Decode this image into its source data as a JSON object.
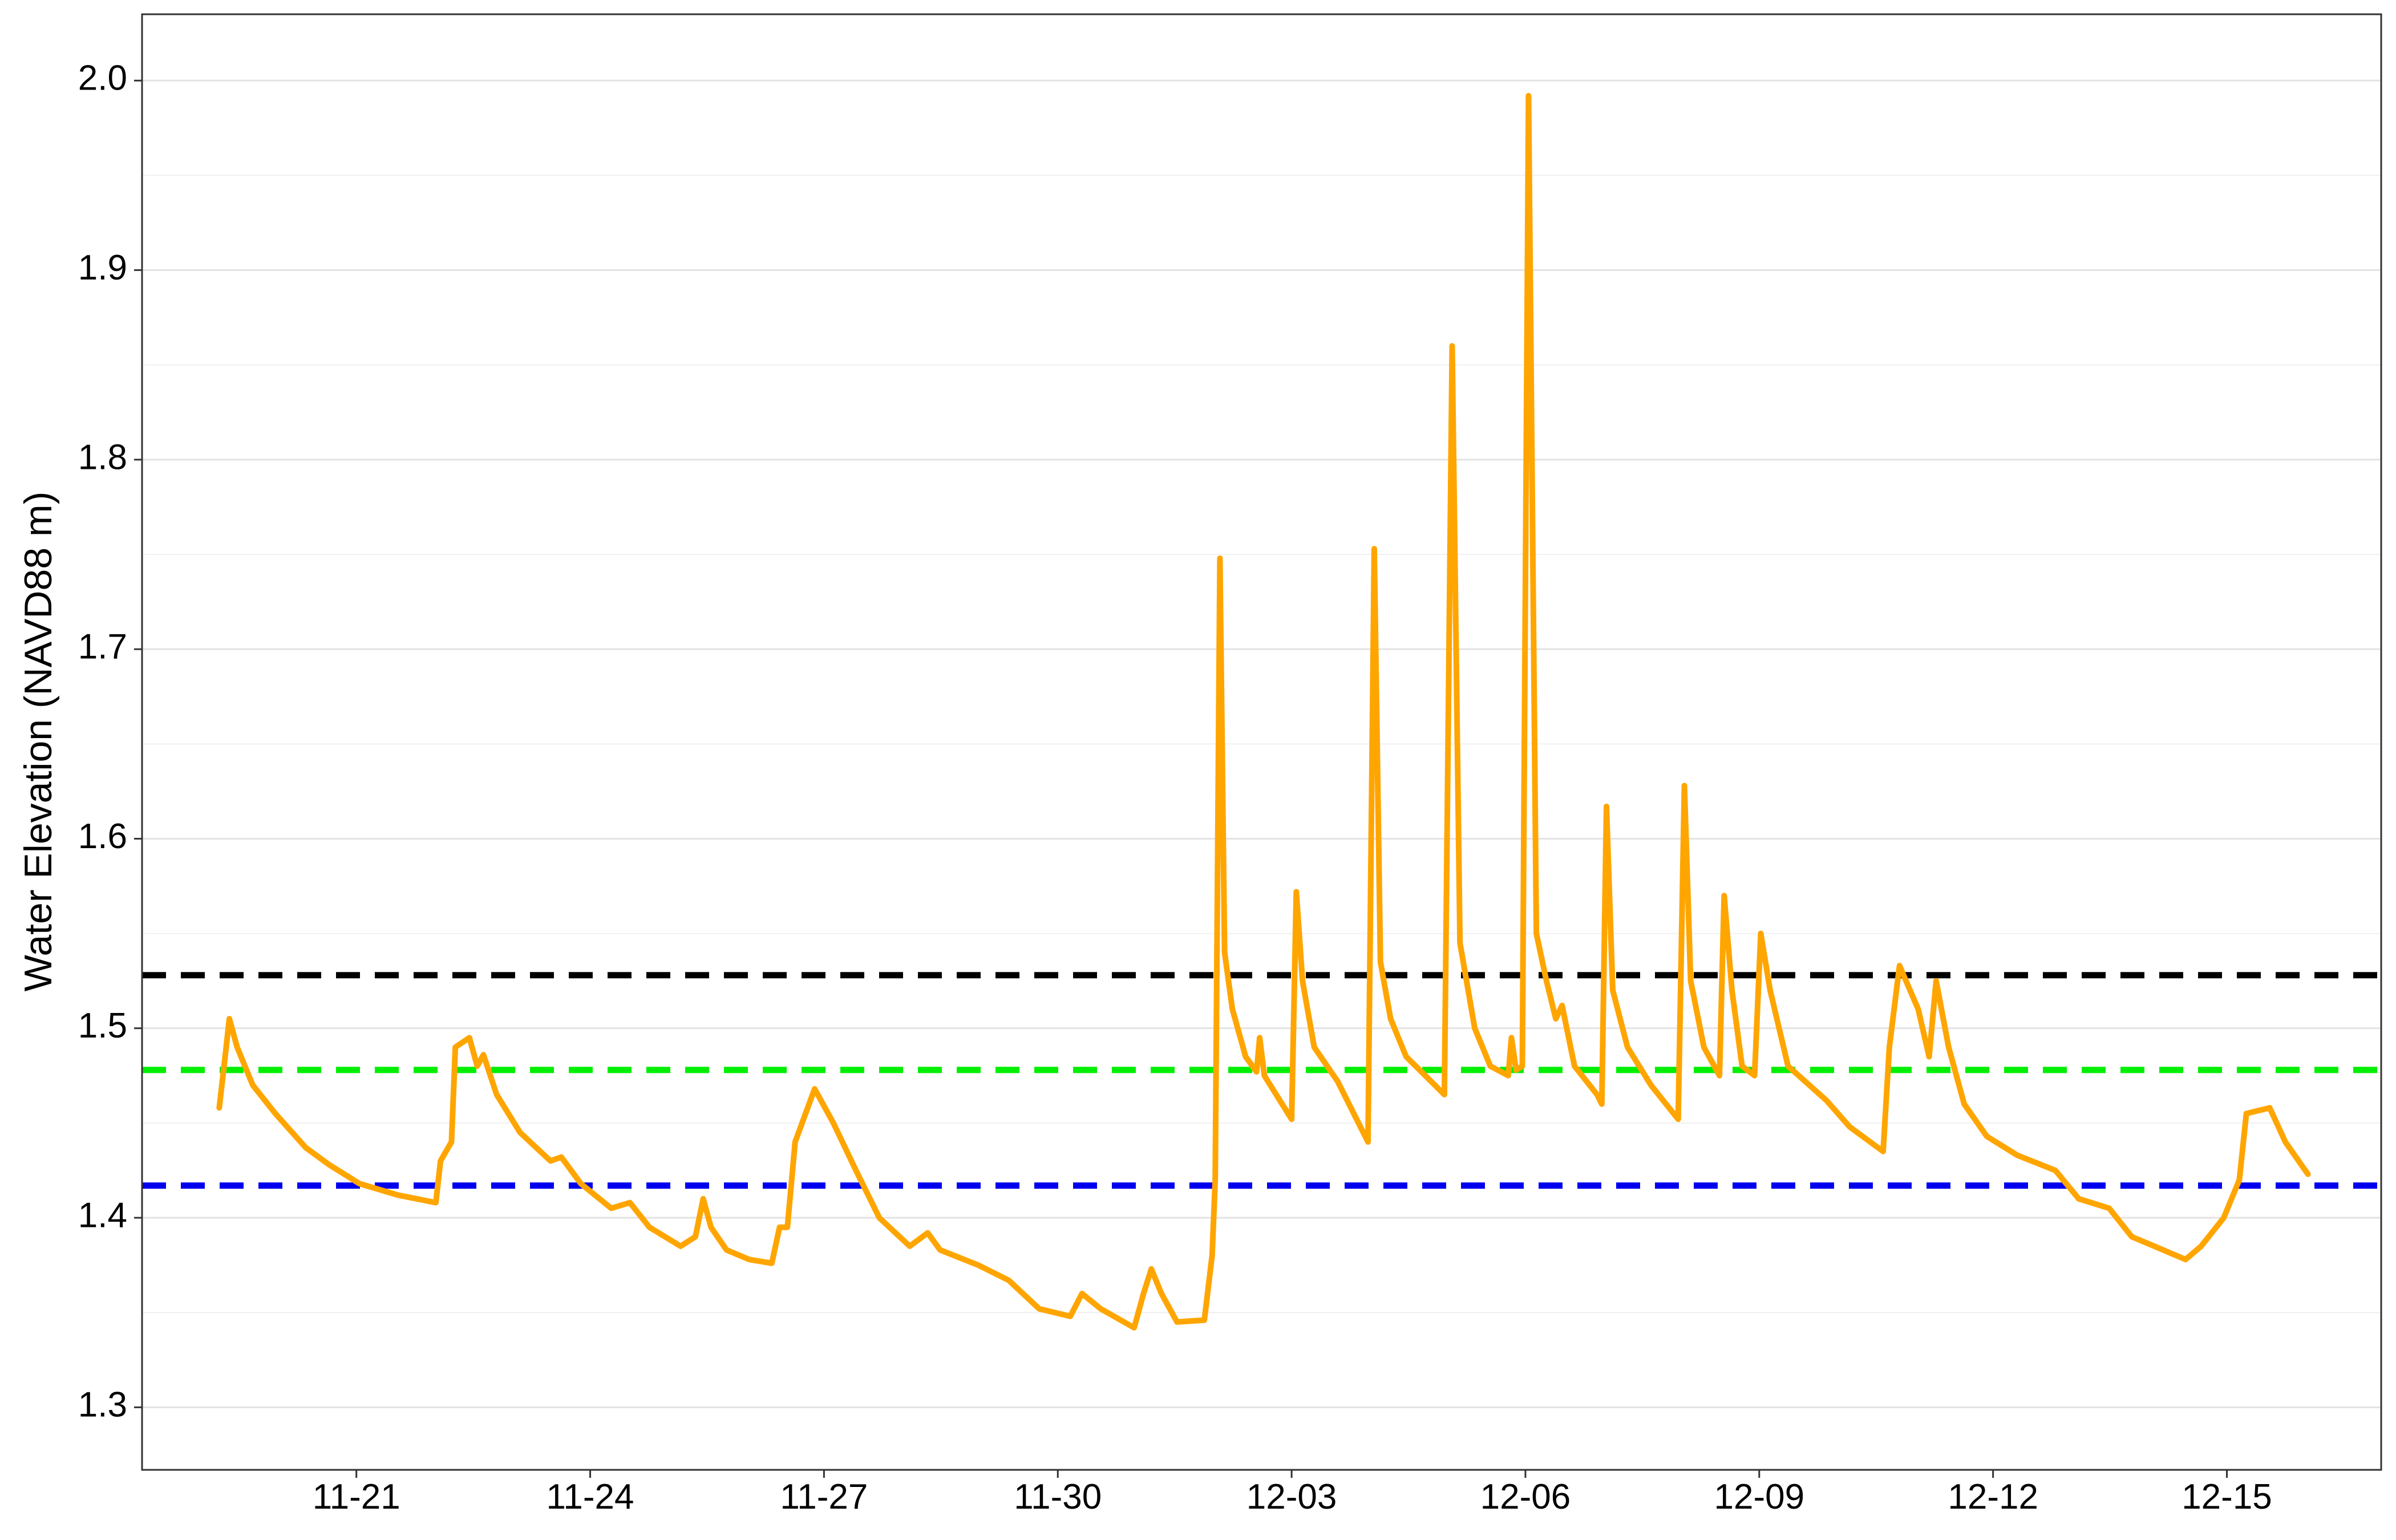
{
  "chart_data": {
    "type": "line",
    "y_label": "Water Elevation (NAVD88 m)",
    "xlim": [
      18.25,
      46.98
    ],
    "xticks": [
      {
        "value": 21,
        "label": "11-21"
      },
      {
        "value": 24,
        "label": "11-24"
      },
      {
        "value": 27,
        "label": "11-27"
      },
      {
        "value": 30,
        "label": "11-30"
      },
      {
        "value": 33,
        "label": "12-03"
      },
      {
        "value": 36,
        "label": "12-06"
      },
      {
        "value": 39,
        "label": "12-09"
      },
      {
        "value": 42,
        "label": "12-12"
      },
      {
        "value": 45,
        "label": "12-15"
      }
    ],
    "ylim": [
      1.267,
      2.035
    ],
    "yticks": [
      1.3,
      1.4,
      1.5,
      1.6,
      1.7,
      1.8,
      1.9,
      {
        "value": 2.0,
        "label": "2.0"
      }
    ],
    "grid": true,
    "reference_lines": [
      {
        "value": 1.528,
        "color": "#000000"
      },
      {
        "value": 1.478,
        "color": "#00ee00"
      },
      {
        "value": 1.417,
        "color": "#0000ee"
      }
    ],
    "series": [
      {
        "color": "#FFA500",
        "x": [
          19.24,
          19.33,
          19.37,
          19.47,
          19.67,
          19.96,
          20.35,
          20.65,
          21.04,
          21.53,
          22.02,
          22.08,
          22.22,
          22.27,
          22.45,
          22.55,
          22.63,
          22.8,
          23.1,
          23.49,
          23.63,
          23.88,
          24.27,
          24.51,
          24.76,
          25.16,
          25.35,
          25.45,
          25.55,
          25.75,
          26.04,
          26.33,
          26.43,
          26.53,
          26.63,
          26.88,
          27.12,
          27.41,
          27.71,
          28.1,
          28.33,
          28.49,
          28.98,
          29.37,
          29.76,
          30.16,
          30.31,
          30.55,
          30.98,
          31.1,
          31.2,
          31.33,
          31.53,
          31.88,
          31.98,
          32.02,
          32.08,
          32.14,
          32.24,
          32.41,
          32.55,
          32.59,
          32.65,
          33.0,
          33.06,
          33.14,
          33.29,
          33.59,
          33.98,
          34.06,
          34.14,
          34.27,
          34.47,
          34.96,
          35.06,
          35.16,
          35.35,
          35.55,
          35.78,
          35.82,
          35.88,
          35.96,
          36.04,
          36.14,
          36.27,
          36.39,
          36.47,
          36.63,
          36.92,
          36.98,
          37.04,
          37.12,
          37.31,
          37.61,
          37.96,
          38.04,
          38.12,
          38.29,
          38.49,
          38.55,
          38.65,
          38.78,
          38.94,
          39.02,
          39.14,
          39.37,
          39.86,
          40.16,
          40.59,
          40.67,
          40.8,
          41.04,
          41.18,
          41.27,
          41.43,
          41.63,
          41.92,
          42.31,
          42.8,
          43.1,
          43.49,
          43.78,
          44.07,
          44.47,
          44.67,
          44.96,
          45.16,
          45.25,
          45.55,
          45.75,
          46.04
        ],
        "values": [
          1.458,
          1.49,
          1.505,
          1.49,
          1.47,
          1.455,
          1.437,
          1.428,
          1.418,
          1.412,
          1.408,
          1.43,
          1.44,
          1.49,
          1.495,
          1.48,
          1.486,
          1.465,
          1.445,
          1.43,
          1.432,
          1.418,
          1.405,
          1.408,
          1.395,
          1.385,
          1.39,
          1.41,
          1.395,
          1.383,
          1.378,
          1.376,
          1.395,
          1.395,
          1.44,
          1.468,
          1.45,
          1.425,
          1.4,
          1.385,
          1.392,
          1.383,
          1.375,
          1.367,
          1.352,
          1.348,
          1.36,
          1.352,
          1.342,
          1.36,
          1.373,
          1.36,
          1.345,
          1.346,
          1.38,
          1.42,
          1.748,
          1.54,
          1.51,
          1.485,
          1.477,
          1.495,
          1.475,
          1.452,
          1.572,
          1.525,
          1.49,
          1.472,
          1.44,
          1.753,
          1.535,
          1.505,
          1.485,
          1.465,
          1.86,
          1.545,
          1.5,
          1.48,
          1.475,
          1.495,
          1.478,
          1.48,
          1.992,
          1.55,
          1.525,
          1.505,
          1.512,
          1.48,
          1.465,
          1.46,
          1.617,
          1.52,
          1.49,
          1.47,
          1.452,
          1.628,
          1.525,
          1.49,
          1.475,
          1.57,
          1.52,
          1.48,
          1.475,
          1.55,
          1.52,
          1.48,
          1.462,
          1.448,
          1.435,
          1.49,
          1.533,
          1.51,
          1.485,
          1.525,
          1.49,
          1.46,
          1.443,
          1.433,
          1.425,
          1.41,
          1.405,
          1.39,
          1.385,
          1.378,
          1.385,
          1.4,
          1.42,
          1.455,
          1.458,
          1.44,
          1.423
        ]
      }
    ]
  }
}
